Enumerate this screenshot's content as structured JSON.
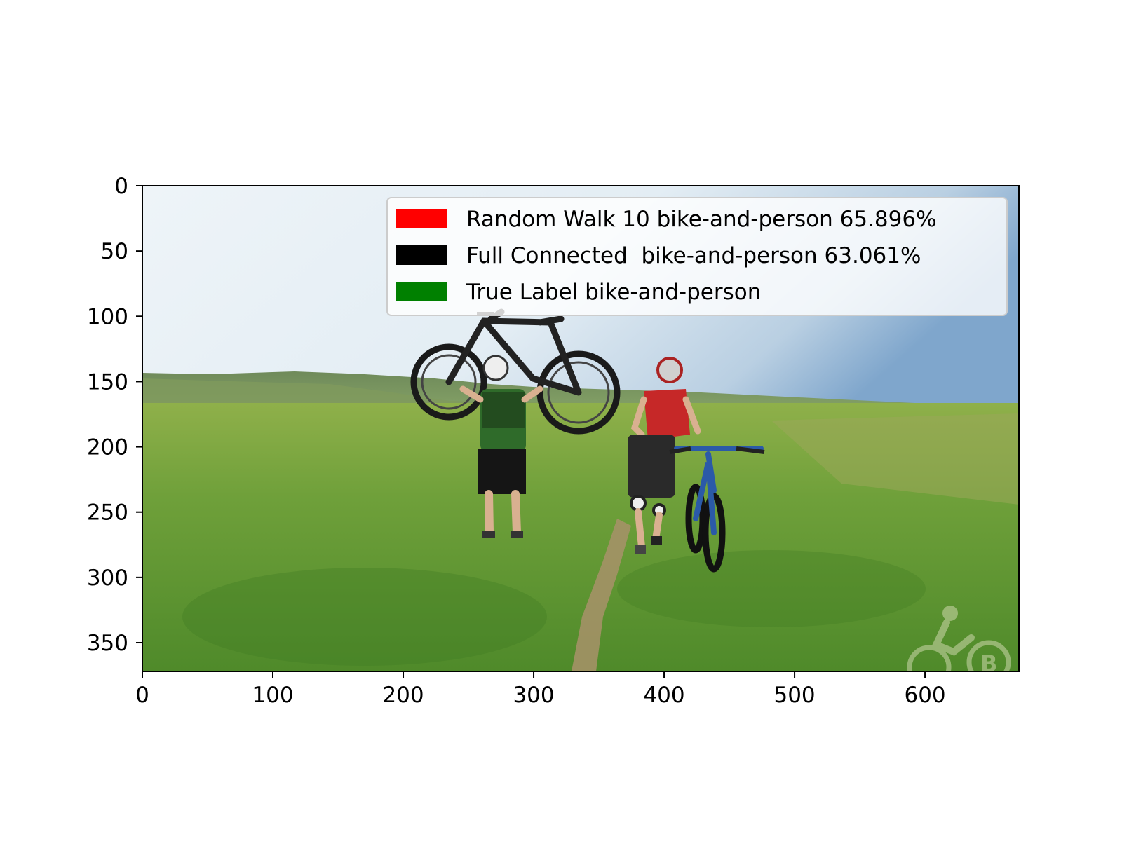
{
  "image": {
    "x_range": [
      0,
      672
    ],
    "y_range": [
      0,
      372
    ],
    "y_inverted": true,
    "x_ticks": [
      "0",
      "100",
      "200",
      "300",
      "400",
      "500",
      "600"
    ],
    "y_ticks": [
      "0",
      "50",
      "100",
      "150",
      "200",
      "250",
      "300",
      "350"
    ],
    "scene": "photo of two people with mountain bikes walking on a grassy path under a hazy sky"
  },
  "legend": {
    "placement": "top-right",
    "items": [
      {
        "label": "Random Walk 10 bike-and-person 65.896%",
        "color": "#ff0000"
      },
      {
        "label": "Full Connected  bike-and-person 63.061%",
        "color": "#000000"
      },
      {
        "label": "True Label bike-and-person",
        "color": "#008000"
      }
    ]
  }
}
